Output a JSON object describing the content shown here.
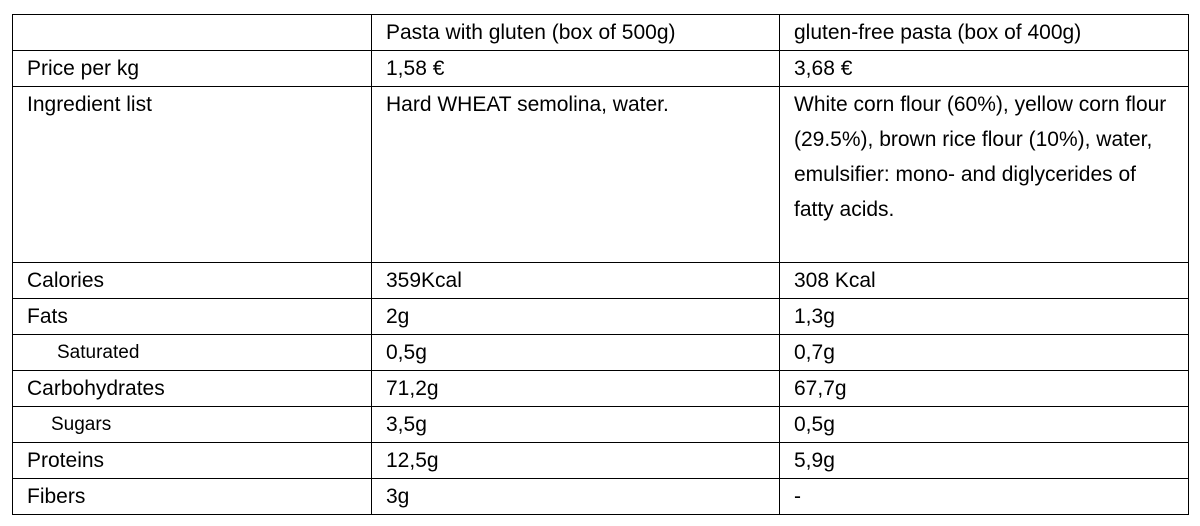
{
  "table": {
    "columns": [
      "Pasta with gluten (box of 500g)",
      "gluten-free pasta (box of 400g)"
    ],
    "rows": [
      [
        "Price per kg",
        "1,58 €",
        "3,68 €"
      ],
      [
        "Ingredient list",
        "Hard WHEAT semolina, water.",
        "White corn flour (60%), yellow corn flour (29.5%), brown rice flour (10%), water, emulsifier: mono- and diglycerides of fatty acids."
      ],
      [
        "Calories",
        "359Kcal",
        "308 Kcal"
      ],
      [
        "Fats",
        "2g",
        "1,3g"
      ],
      [
        "Saturated",
        "0,5g",
        "0,7g"
      ],
      [
        "Carbohydrates",
        "71,2g",
        "67,7g"
      ],
      [
        "Sugars",
        "3,5g",
        "0,5g"
      ],
      [
        "Proteins",
        "12,5g",
        "5,9g"
      ],
      [
        "Fibers",
        "3g",
        "-"
      ]
    ]
  }
}
